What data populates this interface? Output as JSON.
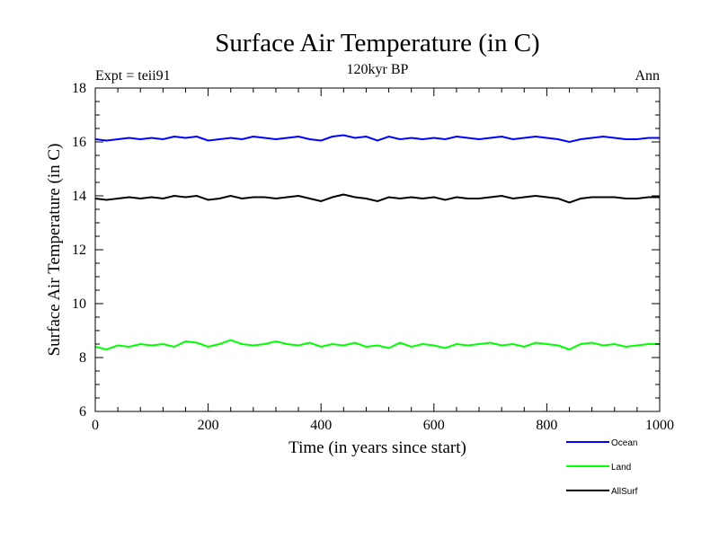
{
  "chart_data": {
    "type": "line",
    "title": "Surface Air Temperature (in C)",
    "subtitle": "120kyr BP",
    "left_label": "Expt = teii91",
    "right_label": "Ann",
    "xlabel": "Time (in years since start)",
    "ylabel": "Surface Air Temperature (in C)",
    "xlim": [
      0,
      1000
    ],
    "ylim": [
      6,
      18
    ],
    "xticks": [
      0,
      200,
      400,
      600,
      800,
      1000
    ],
    "yticks": [
      6,
      8,
      10,
      12,
      14,
      16,
      18
    ],
    "x": [
      0,
      20,
      40,
      60,
      80,
      100,
      120,
      140,
      160,
      180,
      200,
      220,
      240,
      260,
      280,
      300,
      320,
      340,
      360,
      380,
      400,
      420,
      440,
      460,
      480,
      500,
      520,
      540,
      560,
      580,
      600,
      620,
      640,
      660,
      680,
      700,
      720,
      740,
      760,
      780,
      800,
      820,
      840,
      860,
      880,
      900,
      920,
      940,
      960,
      980,
      1000
    ],
    "series": [
      {
        "name": "Ocean",
        "color": "#0000ff",
        "values": [
          16.1,
          16.05,
          16.1,
          16.15,
          16.1,
          16.15,
          16.1,
          16.2,
          16.15,
          16.2,
          16.05,
          16.1,
          16.15,
          16.1,
          16.2,
          16.15,
          16.1,
          16.15,
          16.2,
          16.1,
          16.05,
          16.2,
          16.25,
          16.15,
          16.2,
          16.05,
          16.2,
          16.1,
          16.15,
          16.1,
          16.15,
          16.1,
          16.2,
          16.15,
          16.1,
          16.15,
          16.2,
          16.1,
          16.15,
          16.2,
          16.15,
          16.1,
          16.0,
          16.1,
          16.15,
          16.2,
          16.15,
          16.1,
          16.1,
          16.15,
          16.15
        ]
      },
      {
        "name": "Land",
        "color": "#00ff00",
        "values": [
          8.4,
          8.3,
          8.45,
          8.4,
          8.5,
          8.45,
          8.5,
          8.4,
          8.6,
          8.55,
          8.4,
          8.5,
          8.65,
          8.5,
          8.45,
          8.5,
          8.6,
          8.5,
          8.45,
          8.55,
          8.4,
          8.5,
          8.45,
          8.55,
          8.4,
          8.45,
          8.35,
          8.55,
          8.4,
          8.5,
          8.45,
          8.35,
          8.5,
          8.45,
          8.5,
          8.55,
          8.45,
          8.5,
          8.4,
          8.55,
          8.5,
          8.45,
          8.3,
          8.5,
          8.55,
          8.45,
          8.5,
          8.4,
          8.45,
          8.5,
          8.5
        ]
      },
      {
        "name": "AllSurf",
        "color": "#000000",
        "values": [
          13.9,
          13.85,
          13.9,
          13.95,
          13.9,
          13.95,
          13.9,
          14.0,
          13.95,
          14.0,
          13.85,
          13.9,
          14.0,
          13.9,
          13.95,
          13.95,
          13.9,
          13.95,
          14.0,
          13.9,
          13.8,
          13.95,
          14.05,
          13.95,
          13.9,
          13.8,
          13.95,
          13.9,
          13.95,
          13.9,
          13.95,
          13.85,
          13.95,
          13.9,
          13.9,
          13.95,
          14.0,
          13.9,
          13.95,
          14.0,
          13.95,
          13.9,
          13.75,
          13.9,
          13.95,
          13.95,
          13.95,
          13.9,
          13.9,
          13.95,
          13.95
        ]
      }
    ],
    "legend_placement": "bottom-right"
  }
}
